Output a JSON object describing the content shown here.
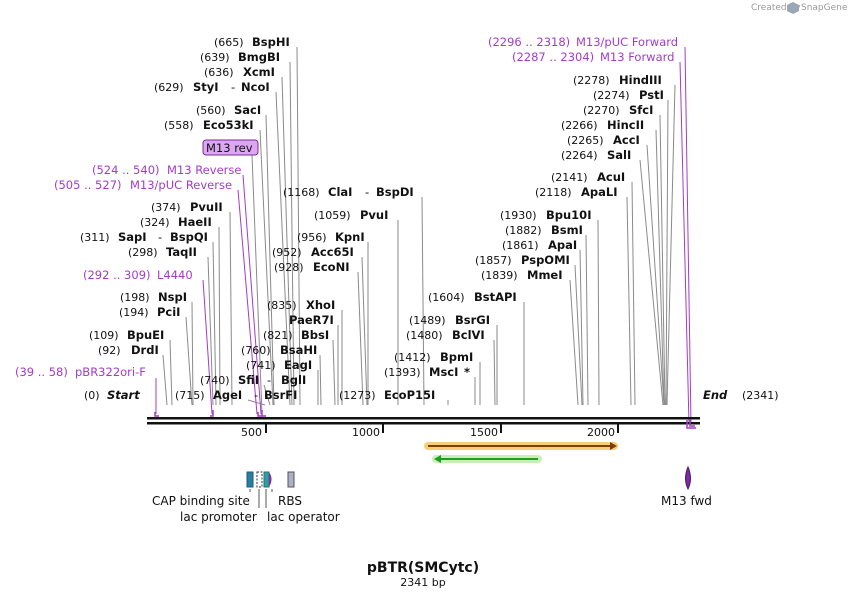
{
  "credit": {
    "prefix": "Created by",
    "brand": "SnapGene"
  },
  "title": "pBTR(SMCytc)",
  "length_label": "2341 bp",
  "ends": {
    "start_label": "Start",
    "start_pos": "(0)",
    "end_label": "End",
    "end_pos": "(2341)"
  },
  "ruler_ticks": [
    "500",
    "1000",
    "1500",
    "2000"
  ],
  "colors": {
    "primer": "#a23cc8",
    "orf": "#7f3f00",
    "orf_glow": "#f2b400",
    "arrow": "#1f9e1f"
  },
  "sites": [
    {
      "pos": "(665)",
      "name": "BspHI"
    },
    {
      "pos": "(639)",
      "name": "BmgBI"
    },
    {
      "pos": "(636)",
      "name": "XcmI"
    },
    {
      "pos": "(629)",
      "name": "StyI",
      "name2": "NcoI"
    },
    {
      "pos": "(560)",
      "name": "SacI"
    },
    {
      "pos": "(558)",
      "name": "Eco53kI"
    },
    {
      "pos": "(374)",
      "name": "PvuII"
    },
    {
      "pos": "(324)",
      "name": "HaeII"
    },
    {
      "pos": "(311)",
      "name": "SapI",
      "name2": "BspQI"
    },
    {
      "pos": "(298)",
      "name": "TaqII"
    },
    {
      "pos": "(198)",
      "name": "NspI"
    },
    {
      "pos": "(194)",
      "name": "PciI"
    },
    {
      "pos": "(109)",
      "name": "BpuEI"
    },
    {
      "pos": "(92)",
      "name": "DrdI"
    },
    {
      "pos": "(740)",
      "name": "SfiI",
      "name2": "BglI"
    },
    {
      "pos": "(715)",
      "name": "AgeI",
      "name2": "BsrFI"
    },
    {
      "pos": "(741)",
      "name": "EagI"
    },
    {
      "pos": "(760)",
      "name": "BsaHI"
    },
    {
      "pos": "(821)",
      "name": "BbsI"
    },
    {
      "pos": "",
      "name": "PaeR7I"
    },
    {
      "pos": "(835)",
      "name": "XhoI"
    },
    {
      "pos": "(928)",
      "name": "EcoNI"
    },
    {
      "pos": "(952)",
      "name": "Acc65I"
    },
    {
      "pos": "(956)",
      "name": "KpnI"
    },
    {
      "pos": "(1059)",
      "name": "PvuI"
    },
    {
      "pos": "(1168)",
      "name": "ClaI",
      "name2": "BspDI"
    },
    {
      "pos": "(1273)",
      "name": "EcoP15I"
    },
    {
      "pos": "(1393)",
      "name": "MscI",
      "mark": "*"
    },
    {
      "pos": "(1412)",
      "name": "BpmI"
    },
    {
      "pos": "(1480)",
      "name": "BclVI"
    },
    {
      "pos": "(1489)",
      "name": "BsrGI"
    },
    {
      "pos": "(1604)",
      "name": "BstAPI"
    },
    {
      "pos": "(1839)",
      "name": "MmeI"
    },
    {
      "pos": "(1857)",
      "name": "PspOMI"
    },
    {
      "pos": "(1861)",
      "name": "ApaI"
    },
    {
      "pos": "(1882)",
      "name": "BsmI"
    },
    {
      "pos": "(1930)",
      "name": "Bpu10I"
    },
    {
      "pos": "(2118)",
      "name": "ApaLI"
    },
    {
      "pos": "(2141)",
      "name": "AcuI"
    },
    {
      "pos": "(2264)",
      "name": "SalI"
    },
    {
      "pos": "(2265)",
      "name": "AccI"
    },
    {
      "pos": "(2266)",
      "name": "HincII"
    },
    {
      "pos": "(2270)",
      "name": "SfcI"
    },
    {
      "pos": "(2274)",
      "name": "PstI"
    },
    {
      "pos": "(2278)",
      "name": "HindIII"
    }
  ],
  "primers": [
    {
      "range": "(2296 .. 2318)",
      "name": "M13/pUC Forward"
    },
    {
      "range": "(2287 .. 2304)",
      "name": "M13 Forward"
    },
    {
      "range": "(524 .. 540)",
      "name": "M13 Reverse"
    },
    {
      "range": "(505 .. 527)",
      "name": "M13/pUC Reverse"
    },
    {
      "range": "(292 .. 309)",
      "name": "L4440"
    },
    {
      "range": "(39 .. 58)",
      "name": "pBR322ori-F"
    }
  ],
  "m13_rev_box": "M13 rev",
  "features": {
    "cap_site": "CAP binding site",
    "lac_promoter": "lac promoter",
    "rbs": "RBS",
    "lac_operator": "lac operator",
    "m13_fwd": "M13 fwd"
  }
}
